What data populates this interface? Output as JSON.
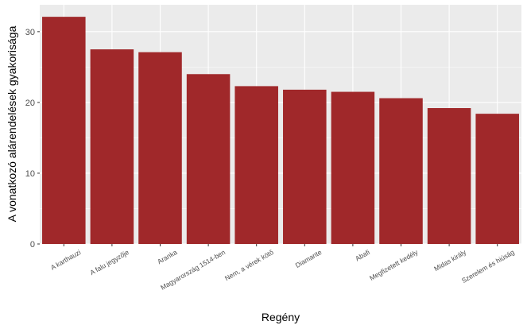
{
  "chart_data": {
    "type": "bar",
    "categories": [
      "A karthauzi",
      "A falu jegyzője",
      "Aranka",
      "Magyarország 1514-ben",
      "Nem, a vérek kötő",
      "Diamante",
      "Abafi",
      "Megfizetett kedély",
      "Midas király",
      "Szerelem és hiúság"
    ],
    "values": [
      32.1,
      27.5,
      27.1,
      24.0,
      22.3,
      21.8,
      21.5,
      20.6,
      19.2,
      18.4
    ],
    "xlabel": "Regény",
    "ylabel": "A vonatkozó alárendelések gyakorisága",
    "ylim": [
      0,
      33.8
    ],
    "yticks": [
      0,
      10,
      20,
      30
    ],
    "grid": true,
    "colors": {
      "bar": "#a0282a",
      "panel": "#ebebeb",
      "grid_major": "#ffffff"
    }
  }
}
